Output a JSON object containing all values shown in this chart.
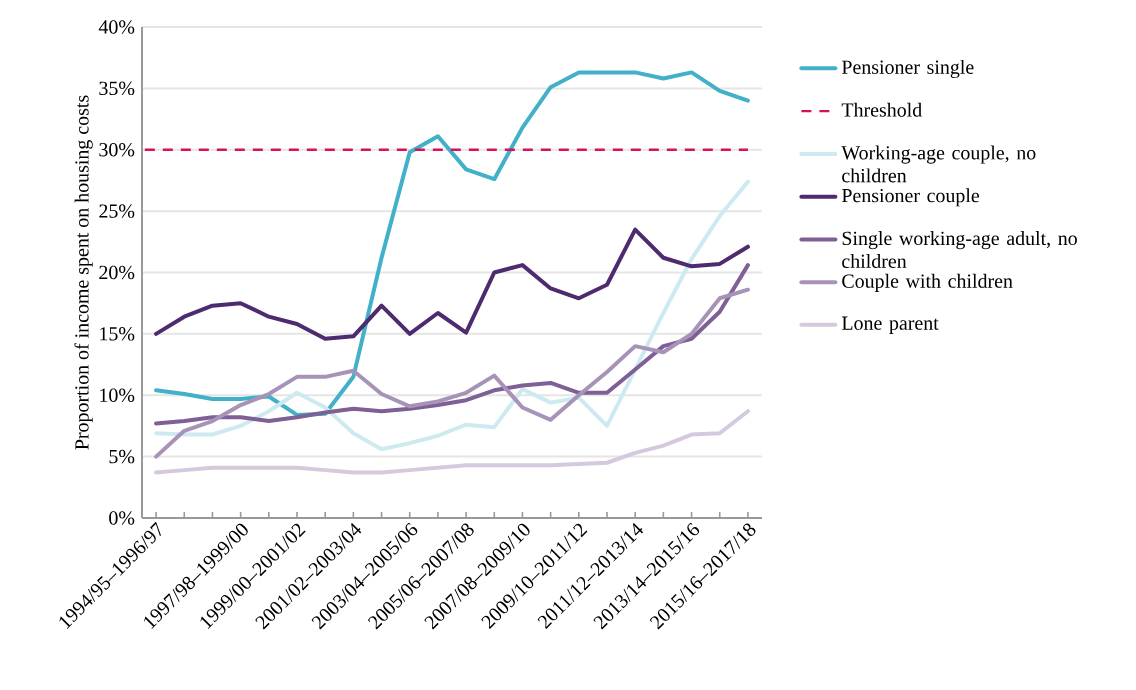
{
  "chart_data": {
    "type": "line",
    "ylabel": "Proportion of income spent on housing costs",
    "categories": [
      "1994/95–1996/97",
      null,
      null,
      "1997/98–1999/00",
      null,
      "1999/00–2001/02",
      null,
      "2001/02–2003/04",
      null,
      "2003/04–2005/06",
      null,
      "2005/06–2007/08",
      null,
      "2007/08–2009/10",
      null,
      "2009/10–2011/12",
      null,
      "2011/12–2013/14",
      null,
      "2013/14–2015/16",
      null,
      "2015/16–2017/18"
    ],
    "series": [
      {
        "name": "Pensioner single",
        "color": "#41b0c8",
        "values": [
          10.4,
          10.1,
          9.7,
          9.7,
          9.9,
          8.4,
          8.5,
          11.5,
          21.2,
          29.8,
          31.1,
          28.4,
          27.6,
          31.8,
          35.1,
          36.3,
          36.3,
          36.3,
          35.8,
          36.3,
          34.8,
          34.0
        ]
      },
      {
        "name": "Working-age couple, no children",
        "color": "#cdeaf0",
        "values": [
          6.9,
          6.8,
          6.8,
          7.5,
          8.7,
          10.2,
          9.0,
          6.9,
          5.6,
          6.1,
          6.7,
          7.6,
          7.4,
          10.5,
          9.4,
          9.8,
          7.5,
          12.1,
          16.7,
          21.1,
          24.6,
          27.4
        ]
      },
      {
        "name": "Pensioner couple",
        "color": "#4e2a6e",
        "values": [
          15.0,
          16.4,
          17.3,
          17.5,
          16.4,
          15.8,
          14.6,
          14.8,
          17.3,
          15.0,
          16.7,
          15.1,
          20.0,
          20.6,
          18.7,
          17.9,
          19.0,
          23.5,
          21.2,
          20.5,
          20.7,
          22.1
        ]
      },
      {
        "name": "Single working-age adult, no children",
        "color": "#7e5f96",
        "values": [
          7.7,
          7.9,
          8.2,
          8.2,
          7.9,
          8.2,
          8.6,
          8.9,
          8.7,
          8.9,
          9.2,
          9.6,
          10.4,
          10.8,
          11.0,
          10.2,
          10.2,
          12.1,
          14.0,
          14.6,
          16.8,
          20.6
        ]
      },
      {
        "name": "Couple with children",
        "color": "#a893b8",
        "values": [
          5.0,
          7.1,
          7.9,
          9.2,
          10.1,
          11.5,
          11.5,
          12.0,
          10.1,
          9.1,
          9.5,
          10.2,
          11.6,
          9.0,
          8.0,
          10.0,
          11.9,
          14.0,
          13.5,
          15.0,
          17.9,
          18.6
        ]
      },
      {
        "name": "Lone parent",
        "color": "#d5c9de",
        "values": [
          3.7,
          3.9,
          4.1,
          4.1,
          4.1,
          4.1,
          3.9,
          3.7,
          3.7,
          3.9,
          4.1,
          4.3,
          4.3,
          4.3,
          4.3,
          4.4,
          4.5,
          5.3,
          5.9,
          6.8,
          6.9,
          8.7
        ]
      }
    ],
    "ref_lines": [
      {
        "axis": "y",
        "value": 30,
        "label": "Threshold",
        "color": "#d6115f",
        "line_style": "dashed"
      }
    ],
    "ylim": [
      0,
      40
    ],
    "yticks": [
      {
        "value": 0,
        "label": "0%"
      },
      {
        "value": 5,
        "label": "5%"
      },
      {
        "value": 10,
        "label": "10%"
      },
      {
        "value": 15,
        "label": "15%"
      },
      {
        "value": 20,
        "label": "20%"
      },
      {
        "value": 25,
        "label": "25%"
      },
      {
        "value": 30,
        "label": "30%"
      },
      {
        "value": 35,
        "label": "35%"
      },
      {
        "value": 40,
        "label": "40%"
      }
    ],
    "grid": "y",
    "legend": "right",
    "marker": "none",
    "line_style": "solid"
  }
}
